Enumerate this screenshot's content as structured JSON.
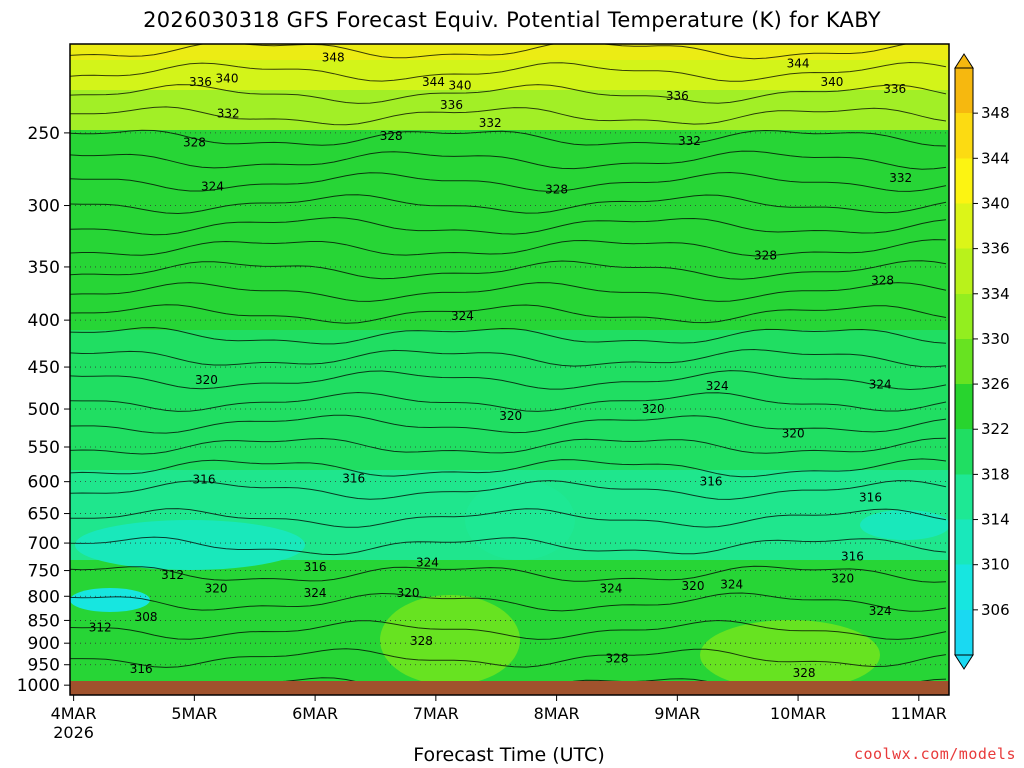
{
  "title": "2026030318 GFS Forecast Equiv. Potential Temperature (K) for KABY",
  "xlabel": "Forecast Time (UTC)",
  "credit": "coolwx.com/models",
  "chart_data": {
    "type": "heatmap",
    "title": "2026030318 GFS Forecast Equiv. Potential Temperature (K) for KABY",
    "xlabel": "Forecast Time (UTC)",
    "ylabel": "",
    "x_ticks": [
      {
        "label": "4MAR",
        "sub": "2026",
        "day": 4
      },
      {
        "label": "5MAR",
        "sub": "",
        "day": 5
      },
      {
        "label": "6MAR",
        "sub": "",
        "day": 6
      },
      {
        "label": "7MAR",
        "sub": "",
        "day": 7
      },
      {
        "label": "8MAR",
        "sub": "",
        "day": 8
      },
      {
        "label": "9MAR",
        "sub": "",
        "day": 9
      },
      {
        "label": "10MAR",
        "sub": "",
        "day": 10
      },
      {
        "label": "11MAR",
        "sub": "",
        "day": 11
      }
    ],
    "x_range_days": [
      3.97,
      11.25
    ],
    "y_ticks": [
      250,
      300,
      350,
      400,
      450,
      500,
      550,
      600,
      650,
      700,
      750,
      800,
      850,
      900,
      950,
      1000
    ],
    "y_range_hpa": [
      200,
      1025
    ],
    "y_scale": "log-pressure (inverted)",
    "colorbar": {
      "ticks": [
        306,
        310,
        314,
        318,
        322,
        326,
        330,
        334,
        336,
        340,
        344,
        348
      ],
      "colors": [
        "#1ad9f2",
        "#17e6e0",
        "#19e8bb",
        "#1ee894",
        "#20de62",
        "#28d42e",
        "#67e321",
        "#93ee1f",
        "#b9f21b",
        "#dcf518",
        "#fcf412",
        "#fcdb12",
        "#f6b80f"
      ]
    },
    "ground_color": "#a0522d",
    "contour_labels": [
      {
        "v": "348",
        "day": 6.15,
        "p": 207
      },
      {
        "v": "344",
        "day": 10.0,
        "p": 210
      },
      {
        "v": "336",
        "day": 5.05,
        "p": 220
      },
      {
        "v": "340",
        "day": 5.27,
        "p": 218
      },
      {
        "v": "344",
        "day": 6.98,
        "p": 220
      },
      {
        "v": "340",
        "day": 7.2,
        "p": 222
      },
      {
        "v": "340",
        "day": 10.28,
        "p": 220
      },
      {
        "v": "336",
        "day": 7.13,
        "p": 233
      },
      {
        "v": "336",
        "day": 9.0,
        "p": 228
      },
      {
        "v": "336",
        "day": 10.8,
        "p": 224
      },
      {
        "v": "332",
        "day": 5.28,
        "p": 238
      },
      {
        "v": "332",
        "day": 7.45,
        "p": 244
      },
      {
        "v": "332",
        "day": 9.1,
        "p": 255
      },
      {
        "v": "328",
        "day": 5.0,
        "p": 256
      },
      {
        "v": "328",
        "day": 6.63,
        "p": 252
      },
      {
        "v": "324",
        "day": 5.15,
        "p": 286
      },
      {
        "v": "328",
        "day": 8.0,
        "p": 288
      },
      {
        "v": "332",
        "day": 10.85,
        "p": 280
      },
      {
        "v": "328",
        "day": 9.73,
        "p": 340
      },
      {
        "v": "328",
        "day": 10.7,
        "p": 362
      },
      {
        "v": "324",
        "day": 7.22,
        "p": 396
      },
      {
        "v": "320",
        "day": 5.1,
        "p": 465
      },
      {
        "v": "324",
        "day": 9.33,
        "p": 472
      },
      {
        "v": "324",
        "day": 10.68,
        "p": 470
      },
      {
        "v": "320",
        "day": 7.62,
        "p": 509
      },
      {
        "v": "320",
        "day": 8.8,
        "p": 500
      },
      {
        "v": "320",
        "day": 9.96,
        "p": 532
      },
      {
        "v": "316",
        "day": 5.08,
        "p": 597
      },
      {
        "v": "316",
        "day": 6.32,
        "p": 595
      },
      {
        "v": "316",
        "day": 9.28,
        "p": 600
      },
      {
        "v": "316",
        "day": 10.6,
        "p": 624
      },
      {
        "v": "316",
        "day": 10.45,
        "p": 724
      },
      {
        "v": "316",
        "day": 6.0,
        "p": 743
      },
      {
        "v": "324",
        "day": 6.93,
        "p": 735
      },
      {
        "v": "312",
        "day": 4.82,
        "p": 758
      },
      {
        "v": "320",
        "day": 5.18,
        "p": 785
      },
      {
        "v": "324",
        "day": 6.0,
        "p": 793
      },
      {
        "v": "320",
        "day": 6.77,
        "p": 793
      },
      {
        "v": "324",
        "day": 8.45,
        "p": 785
      },
      {
        "v": "320",
        "day": 9.13,
        "p": 780
      },
      {
        "v": "324",
        "day": 9.45,
        "p": 777
      },
      {
        "v": "320",
        "day": 10.37,
        "p": 765
      },
      {
        "v": "308",
        "day": 4.6,
        "p": 843
      },
      {
        "v": "312",
        "day": 4.22,
        "p": 865
      },
      {
        "v": "324",
        "day": 10.68,
        "p": 830
      },
      {
        "v": "328",
        "day": 6.88,
        "p": 895
      },
      {
        "v": "328",
        "day": 8.5,
        "p": 935
      },
      {
        "v": "316",
        "day": 4.56,
        "p": 960
      },
      {
        "v": "328",
        "day": 10.05,
        "p": 970
      }
    ]
  }
}
